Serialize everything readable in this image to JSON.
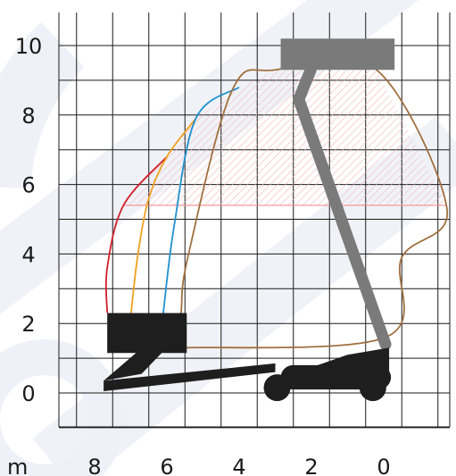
{
  "chart_data": {
    "type": "diagram",
    "title": "",
    "unit": "m",
    "grid": true,
    "x_axis": {
      "direction": "reversed",
      "tick_labels": [
        "8",
        "6",
        "4",
        "2",
        "0"
      ],
      "tick_values": [
        8,
        6,
        4,
        2,
        0
      ],
      "range": [
        9,
        -1.75
      ]
    },
    "y_axis": {
      "tick_labels": [
        "0",
        "2",
        "4",
        "6",
        "8",
        "10"
      ],
      "tick_values": [
        0,
        2,
        4,
        6,
        8,
        10
      ],
      "range": [
        -1,
        11
      ]
    },
    "envelope_curves": [
      {
        "color": "#d0202a",
        "points": [
          [
            7.65,
            2.3
          ],
          [
            7.65,
            3.6
          ],
          [
            7.2,
            5.4
          ],
          [
            6.0,
            6.8
          ]
        ]
      },
      {
        "color": "#f0a020",
        "points": [
          [
            7.0,
            2.2
          ],
          [
            6.8,
            4.0
          ],
          [
            6.5,
            5.6
          ],
          [
            6.0,
            6.8
          ],
          [
            5.2,
            7.9
          ]
        ]
      },
      {
        "color": "#2090d0",
        "points": [
          [
            6.1,
            2.3
          ],
          [
            5.8,
            4.8
          ],
          [
            5.2,
            7.9
          ],
          [
            4.0,
            8.8
          ]
        ]
      },
      {
        "color": "#a07040",
        "points": [
          [
            5.6,
            1.3
          ],
          [
            5.6,
            2.4
          ],
          [
            5.4,
            4.0
          ],
          [
            4.2,
            8.7
          ],
          [
            3.0,
            9.3
          ],
          [
            0.2,
            9.3
          ],
          [
            -1.75,
            5.3
          ],
          [
            -0.5,
            3.9
          ],
          [
            -0.05,
            1.6
          ],
          [
            5.6,
            1.3
          ]
        ]
      }
    ],
    "horizontal_reference": {
      "color": "#ef8f8f",
      "y": 5.4,
      "x_from": 7.2,
      "x_to": -1.75
    },
    "platform_color": "#7a7a7a",
    "machine_color": "#1e1e1e"
  }
}
